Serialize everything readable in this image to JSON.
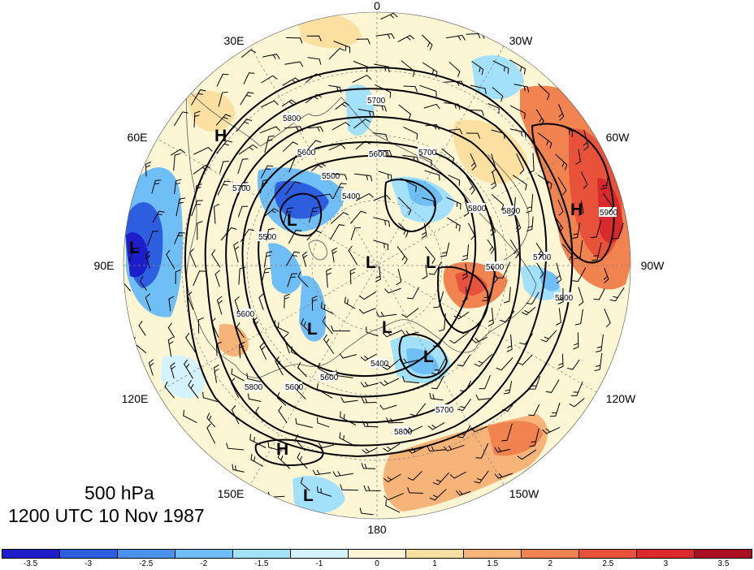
{
  "map": {
    "longitude_labels": [
      "0",
      "30W",
      "60W",
      "90W",
      "120W",
      "150W",
      "180",
      "150E",
      "120E",
      "90E",
      "60E",
      "30E"
    ],
    "contour_labels": [
      "5700",
      "5600",
      "5800",
      "5700",
      "5800",
      "5900",
      "5600",
      "5800",
      "5800",
      "5700",
      "5600",
      "5500",
      "5400",
      "5600",
      "5600",
      "5700",
      "5800",
      "5500",
      "5400",
      "5600",
      "5700",
      "5800"
    ],
    "pressure_centers": [
      "H",
      "H",
      "L",
      "L",
      "L",
      "L",
      "L",
      "L",
      "L",
      "H",
      "L"
    ],
    "caption": {
      "level": "500 hPa",
      "time": "1200 UTC 10 Nov 1987"
    }
  },
  "colorbar": {
    "colors": [
      "#1d1ec9",
      "#2e5ee0",
      "#4a92ee",
      "#6fbef6",
      "#a3e1fb",
      "#d5f3fd",
      "#fdf6d4",
      "#fbe0a2",
      "#f6b479",
      "#f0834f",
      "#e8513a",
      "#d8292d",
      "#a8101f"
    ],
    "tick_labels": [
      "-3.5",
      "-3",
      "-2.5",
      "-2",
      "-1.5",
      "-1",
      "0",
      "1",
      "1.5",
      "2",
      "2.5",
      "3",
      "3.5"
    ]
  }
}
